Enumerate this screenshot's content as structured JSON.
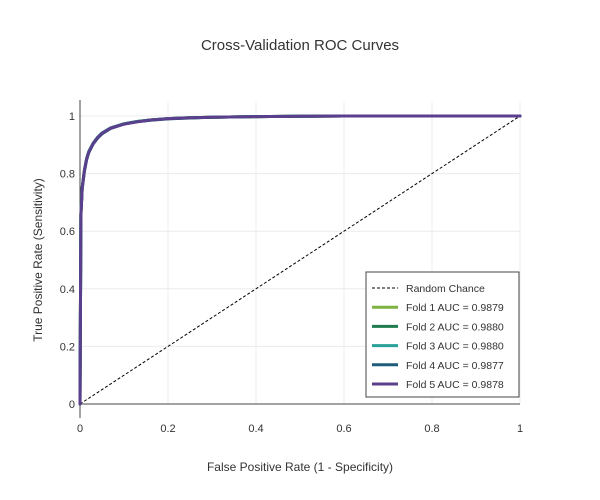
{
  "chart_data": {
    "type": "line",
    "title": "Cross-Validation ROC Curves",
    "xlabel": "False Positive Rate (1 - Specificity)",
    "ylabel": "True Positive Rate (Sensitivity)",
    "xlim": [
      0,
      1
    ],
    "ylim": [
      0,
      1
    ],
    "x_ticks": [
      "0",
      "0.2",
      "0.4",
      "0.6",
      "0.8",
      "1"
    ],
    "y_ticks": [
      "0",
      "0.2",
      "0.4",
      "0.6",
      "0.8",
      "1"
    ],
    "grid": true,
    "legend_position": "bottom-right",
    "reference_line": {
      "name": "Random Chance",
      "x": [
        0,
        1
      ],
      "y": [
        0,
        1
      ],
      "color": "#000000",
      "style": "dashed"
    },
    "series": [
      {
        "name": "Fold 1 AUC = 0.9879",
        "color": "#7cb342",
        "x": [
          0,
          0.002,
          0.005,
          0.01,
          0.015,
          0.02,
          0.03,
          0.04,
          0.05,
          0.07,
          0.1,
          0.13,
          0.16,
          0.2,
          0.25,
          0.3,
          0.4,
          0.5,
          0.6,
          0.7,
          0.8,
          0.9,
          1.0
        ],
        "y": [
          0,
          0.66,
          0.75,
          0.81,
          0.85,
          0.875,
          0.905,
          0.925,
          0.94,
          0.958,
          0.973,
          0.981,
          0.986,
          0.991,
          0.994,
          0.996,
          0.998,
          0.999,
          1.0,
          1.0,
          1.0,
          1.0,
          1.0
        ]
      },
      {
        "name": "Fold 2 AUC = 0.9880",
        "color": "#1e7b4f",
        "x": [
          0,
          0.002,
          0.005,
          0.01,
          0.015,
          0.02,
          0.03,
          0.04,
          0.05,
          0.07,
          0.1,
          0.13,
          0.16,
          0.2,
          0.25,
          0.3,
          0.4,
          0.5,
          0.6,
          0.7,
          0.8,
          0.9,
          1.0
        ],
        "y": [
          0,
          0.66,
          0.752,
          0.812,
          0.852,
          0.877,
          0.906,
          0.926,
          0.941,
          0.959,
          0.973,
          0.981,
          0.986,
          0.991,
          0.994,
          0.996,
          0.998,
          0.999,
          1.0,
          1.0,
          1.0,
          1.0,
          1.0
        ]
      },
      {
        "name": "Fold 3 AUC = 0.9880",
        "color": "#2aa198",
        "x": [
          0,
          0.002,
          0.005,
          0.01,
          0.015,
          0.02,
          0.03,
          0.04,
          0.05,
          0.07,
          0.1,
          0.13,
          0.16,
          0.2,
          0.25,
          0.3,
          0.4,
          0.5,
          0.6,
          0.7,
          0.8,
          0.9,
          1.0
        ],
        "y": [
          0,
          0.66,
          0.751,
          0.811,
          0.851,
          0.876,
          0.906,
          0.926,
          0.941,
          0.959,
          0.973,
          0.981,
          0.986,
          0.991,
          0.994,
          0.996,
          0.998,
          0.999,
          1.0,
          1.0,
          1.0,
          1.0,
          1.0
        ]
      },
      {
        "name": "Fold 4 AUC = 0.9877",
        "color": "#1f5c7a",
        "x": [
          0,
          0.002,
          0.005,
          0.01,
          0.015,
          0.02,
          0.03,
          0.04,
          0.05,
          0.07,
          0.1,
          0.13,
          0.16,
          0.2,
          0.25,
          0.3,
          0.4,
          0.5,
          0.6,
          0.7,
          0.8,
          0.9,
          1.0
        ],
        "y": [
          0,
          0.655,
          0.748,
          0.808,
          0.848,
          0.873,
          0.903,
          0.923,
          0.938,
          0.957,
          0.972,
          0.98,
          0.985,
          0.99,
          0.993,
          0.996,
          0.998,
          0.999,
          1.0,
          1.0,
          1.0,
          1.0,
          1.0
        ]
      },
      {
        "name": "Fold 5 AUC = 0.9878",
        "color": "#5b3f8c",
        "x": [
          0,
          0.002,
          0.005,
          0.01,
          0.015,
          0.02,
          0.03,
          0.04,
          0.05,
          0.07,
          0.1,
          0.13,
          0.16,
          0.2,
          0.25,
          0.3,
          0.4,
          0.5,
          0.6,
          0.7,
          0.8,
          0.9,
          1.0
        ],
        "y": [
          0,
          0.658,
          0.75,
          0.81,
          0.85,
          0.875,
          0.905,
          0.925,
          0.94,
          0.958,
          0.972,
          0.98,
          0.986,
          0.991,
          0.994,
          0.996,
          0.998,
          0.999,
          1.0,
          1.0,
          1.0,
          1.0,
          1.0
        ]
      }
    ]
  }
}
